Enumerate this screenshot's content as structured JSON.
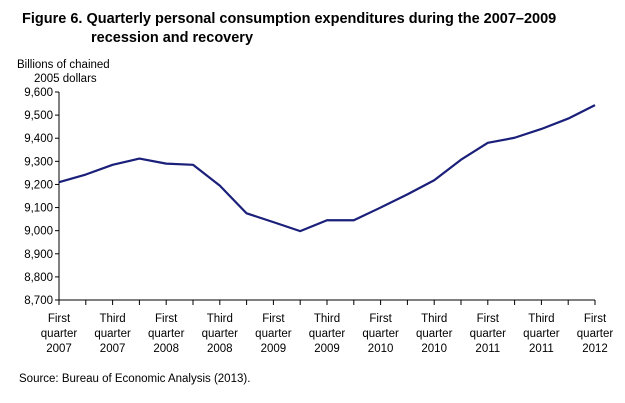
{
  "title_prefix": "Figure 6.",
  "title_line1": "Quarterly personal consumption expenditures during the 2007–2009",
  "title_line2": "recession and recovery",
  "source": "Source: Bureau of Economic Analysis (2013).",
  "chart_data": {
    "type": "line",
    "ylabel_line1": "Billions of chained",
    "ylabel_line2": "2005 dollars",
    "ylim": [
      8700,
      9600
    ],
    "yticks": [
      8700,
      8800,
      8900,
      9000,
      9100,
      9200,
      9300,
      9400,
      9500,
      9600
    ],
    "ytick_labels": [
      "8,700",
      "8,800",
      "8,900",
      "9,000",
      "9,100",
      "9,200",
      "9,300",
      "9,400",
      "9,500",
      "9,600"
    ],
    "xtick_labels": [
      [
        "First",
        "quarter",
        "2007"
      ],
      [
        "Third",
        "quarter",
        "2007"
      ],
      [
        "First",
        "quarter",
        "2008"
      ],
      [
        "Third",
        "quarter",
        "2008"
      ],
      [
        "First",
        "quarter",
        "2009"
      ],
      [
        "Third",
        "quarter",
        "2009"
      ],
      [
        "First",
        "quarter",
        "2010"
      ],
      [
        "Third",
        "quarter",
        "2010"
      ],
      [
        "First",
        "quarter",
        "2011"
      ],
      [
        "Third",
        "quarter",
        "2011"
      ],
      [
        "First",
        "quarter",
        "2012"
      ]
    ],
    "series": [
      {
        "color": "#1a1f7a",
        "x": [
          "2007Q1",
          "2007Q2",
          "2007Q3",
          "2007Q4",
          "2008Q1",
          "2008Q2",
          "2008Q3",
          "2008Q4",
          "2009Q1",
          "2009Q2",
          "2009Q3",
          "2009Q4",
          "2010Q1",
          "2010Q2",
          "2010Q3",
          "2010Q4",
          "2011Q1",
          "2011Q2",
          "2011Q3",
          "2011Q4",
          "2012Q1"
        ],
        "values": [
          9210,
          9243,
          9285,
          9312,
          9290,
          9285,
          9195,
          9075,
          9037,
          8998,
          9045,
          9045,
          9100,
          9157,
          9218,
          9307,
          9380,
          9402,
          9440,
          9485,
          9543
        ]
      }
    ],
    "grid": false,
    "legend": "none"
  }
}
